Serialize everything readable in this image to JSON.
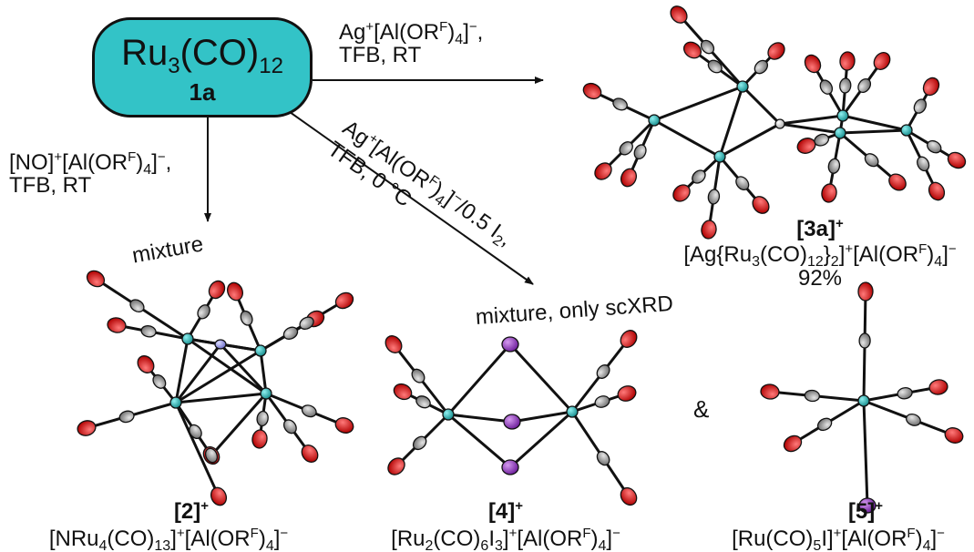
{
  "start": {
    "formula": [
      "Ru",
      "3",
      "(CO)",
      "12"
    ],
    "label": "1a"
  },
  "arrows": {
    "ag": {
      "line1": [
        "Ag",
        "+",
        "[Al(OR",
        "F",
        ")",
        "4",
        "]",
        "−",
        ","
      ],
      "line2": "TFB, RT"
    },
    "no": {
      "line1": [
        "[NO]",
        "+",
        "[Al(OR",
        "F",
        ")",
        "4",
        "]",
        "−",
        ","
      ],
      "line2": "TFB, RT"
    },
    "iodine": {
      "line1": [
        "Ag",
        "+",
        "[Al(OR",
        "F",
        ")",
        "4",
        "]",
        "−",
        "/0.5 I",
        "2",
        ","
      ],
      "line2": "TFB, 0 °C"
    }
  },
  "products": {
    "p3a": {
      "label": "[3a]",
      "charge": "+",
      "formula": [
        "[Ag{Ru",
        "3",
        "(CO)",
        "12",
        "}",
        "2",
        "]",
        "+",
        "[Al(OR",
        "F",
        ")",
        "4",
        "]",
        "−"
      ],
      "yield": "92%"
    },
    "p2": {
      "note": "mixture",
      "label": "[2]",
      "charge": "+",
      "formula": [
        "[NRu",
        "4",
        "(CO)",
        "13",
        "]",
        "+",
        "[Al(OR",
        "F",
        ")",
        "4",
        "]",
        "−"
      ]
    },
    "p4": {
      "note": "mixture, only scXRD",
      "label": "[4]",
      "charge": "+",
      "formula": [
        "[Ru",
        "2",
        "(CO)",
        "6",
        "I",
        "3",
        "]",
        "+",
        "[Al(OR",
        "F",
        ")",
        "4",
        "]",
        "−"
      ]
    },
    "p5": {
      "label": "[5]",
      "charge": "+",
      "formula": [
        "[Ru(CO)",
        "5",
        "I]",
        "+",
        "[Al(OR",
        "F",
        ")",
        "4",
        "]",
        "−"
      ]
    }
  },
  "connector": "&",
  "colors": {
    "ruthenium": "#1fa0a0",
    "carbon": "#9a9a9a",
    "oxygen": "#e01010",
    "iodine": "#8a2bb8",
    "nitrogen": "#8e8ee0",
    "silver": "#d4d4d4",
    "box_fill": "#33c3c7"
  }
}
